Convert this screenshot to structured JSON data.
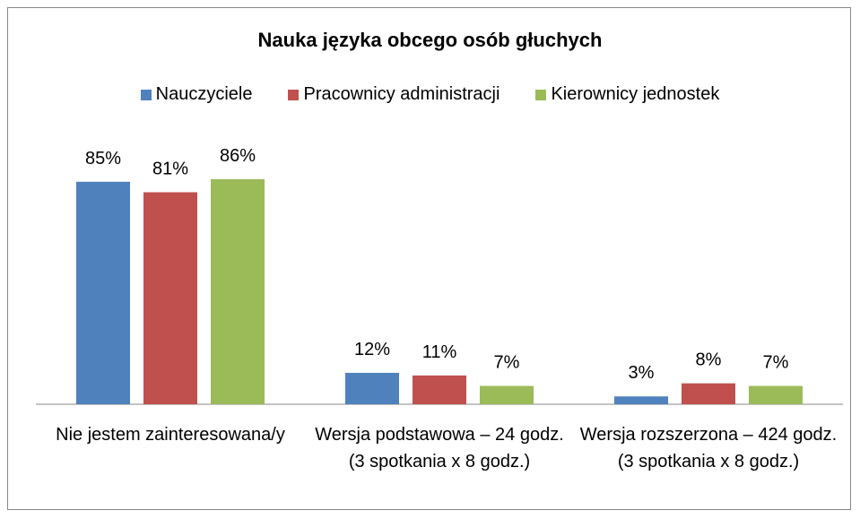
{
  "chart_data": {
    "type": "bar",
    "title": "Nauka języka obcego osób głuchych",
    "categories": [
      "Nie jestem zainteresowana/y",
      "Wersja podstawowa – 24 godz. (3 spotkania x 8 godz.)",
      "Wersja rozszerzona – 424 godz. (3 spotkania x 8 godz.)"
    ],
    "series": [
      {
        "name": "Nauczyciele",
        "color": "#4f81bd",
        "values": [
          85,
          12,
          3
        ],
        "value_labels": [
          "85%",
          "12%",
          "3%"
        ]
      },
      {
        "name": "Pracownicy administracji",
        "color": "#c0504d",
        "values": [
          81,
          11,
          8
        ],
        "value_labels": [
          "81%",
          "11%",
          "8%"
        ]
      },
      {
        "name": "Kierownicy jednostek",
        "color": "#9bbb59",
        "values": [
          86,
          7,
          7
        ],
        "value_labels": [
          "86%",
          "7%",
          "7%"
        ]
      }
    ],
    "legend": "top"
  }
}
